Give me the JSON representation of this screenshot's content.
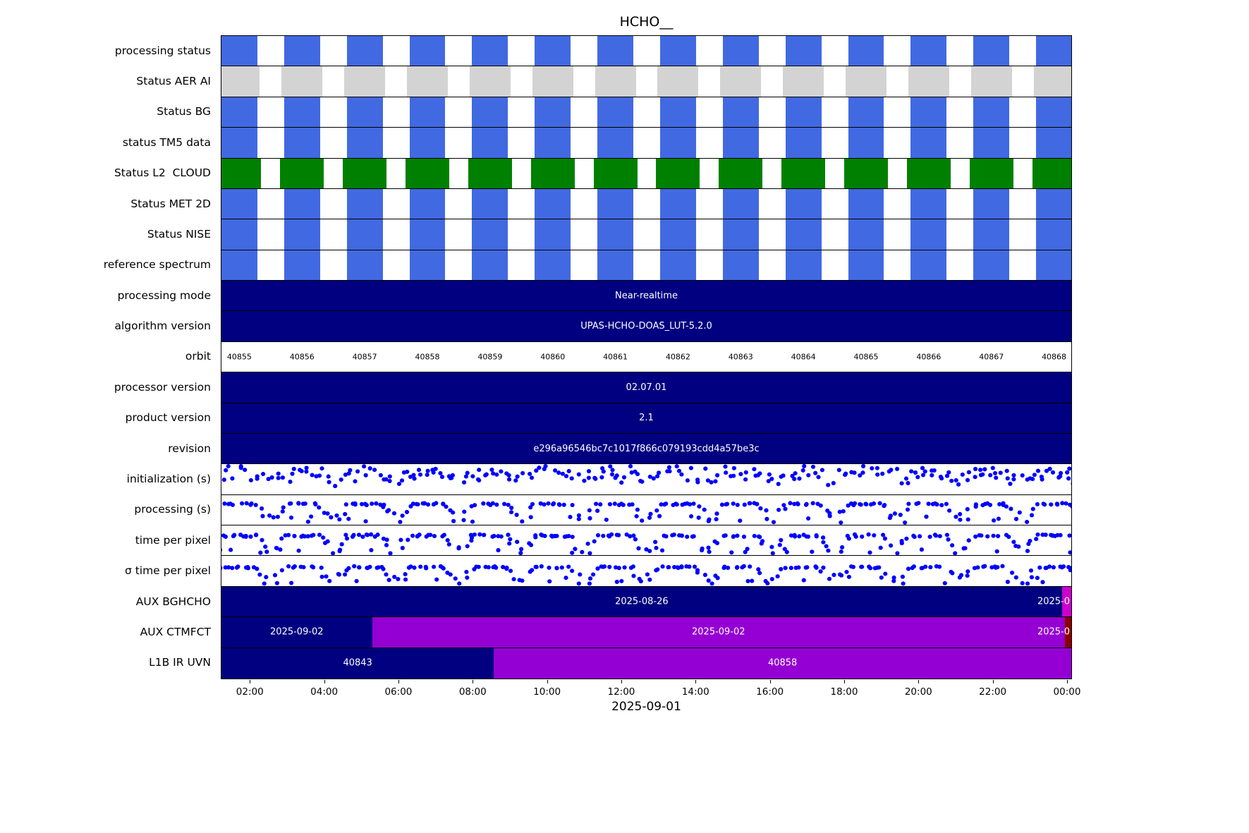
{
  "colors": {
    "blue": "#4169E1",
    "gray": "#D3D3D3",
    "green": "#008000",
    "navy": "#000080",
    "violet": "#9400D3",
    "magenta": "#CC00CC",
    "darkred": "#8B0000",
    "dot": "#0000FF",
    "axis": "#000000",
    "text_on_dark": "#FFFFFF"
  },
  "chart_data": {
    "type": "timeline-status",
    "title": "HCHO__",
    "x_axis": {
      "label": "2025-09-01",
      "ticks": [
        "02:00",
        "04:00",
        "06:00",
        "08:00",
        "10:00",
        "12:00",
        "14:00",
        "16:00",
        "18:00",
        "20:00",
        "22:00",
        "00:00"
      ],
      "start_min": 73,
      "span_min": 1375
    },
    "orbit_geometry": {
      "first_center": 0.0211,
      "spacing": 0.07374,
      "block_half_spread": 0.45
    },
    "orbits": [
      "40855",
      "40856",
      "40857",
      "40858",
      "40859",
      "40860",
      "40861",
      "40862",
      "40863",
      "40864",
      "40865",
      "40866",
      "40867",
      "40868"
    ],
    "rows": [
      {
        "label": "processing status",
        "type": "blocks",
        "color": "blue",
        "block_w": 0.0423
      },
      {
        "label": "Status AER AI",
        "type": "blocks",
        "color": "gray",
        "block_w": 0.0481
      },
      {
        "label": "Status BG",
        "type": "blocks",
        "color": "blue",
        "block_w": 0.0423
      },
      {
        "label": "status TM5 data",
        "type": "blocks",
        "color": "blue",
        "block_w": 0.0423
      },
      {
        "label": "Status L2  CLOUD",
        "type": "blocks",
        "color": "green",
        "block_w": 0.0514
      },
      {
        "label": "Status MET 2D",
        "type": "blocks",
        "color": "blue",
        "block_w": 0.0423
      },
      {
        "label": "Status NISE",
        "type": "blocks",
        "color": "blue",
        "block_w": 0.0423
      },
      {
        "label": "reference spectrum",
        "type": "blocks",
        "color": "blue",
        "block_w": 0.0423
      },
      {
        "label": "processing mode",
        "type": "bar",
        "color": "navy",
        "text": "Near-realtime"
      },
      {
        "label": "algorithm version",
        "type": "bar",
        "color": "navy",
        "text": "UPAS-HCHO-DOAS_LUT-5.2.0"
      },
      {
        "label": "orbit",
        "type": "orbit_labels"
      },
      {
        "label": "processor version",
        "type": "bar",
        "color": "navy",
        "text": "02.07.01"
      },
      {
        "label": "product version",
        "type": "bar",
        "color": "navy",
        "text": "2.1"
      },
      {
        "label": "revision",
        "type": "bar",
        "color": "navy",
        "text": "e296a96546bc7c1017f866c079193cdd4a57be3c"
      },
      {
        "label": "initialization (s)",
        "type": "scatter",
        "seed": 101,
        "pattern": {
          "kind": "noisy",
          "flat": 0.52,
          "noise": 0.45,
          "outlier_p": 0.14
        }
      },
      {
        "label": "processing (s)",
        "type": "scatter",
        "seed": 202,
        "pattern": {
          "kind": "arch",
          "flat": 0.3,
          "noise": 0.07,
          "outlier_p": 0.1
        }
      },
      {
        "label": "time per pixel",
        "type": "scatter",
        "seed": 303,
        "pattern": {
          "kind": "arch",
          "flat": 0.34,
          "noise": 0.08,
          "outlier_p": 0.12
        }
      },
      {
        "label": "σ time per pixel",
        "type": "scatter",
        "seed": 404,
        "pattern": {
          "kind": "arch",
          "flat": 0.38,
          "noise": 0.07,
          "outlier_p": 0.1
        }
      },
      {
        "label": "AUX BGHCHO",
        "type": "segments",
        "segments": [
          {
            "from": 0,
            "to": 0.989,
            "color": "navy",
            "text": "2025-08-26"
          },
          {
            "from": 0.989,
            "to": 1,
            "color": "magenta",
            "text": "2025-0",
            "anchor": "right"
          }
        ]
      },
      {
        "label": "AUX CTMFCT",
        "type": "segments",
        "segments": [
          {
            "from": 0,
            "to": 0.1773,
            "color": "navy",
            "text": "2025-09-02"
          },
          {
            "from": 0.1773,
            "to": 0.9925,
            "color": "violet",
            "text": "2025-09-02"
          },
          {
            "from": 0.9925,
            "to": 1,
            "color": "darkred",
            "text": "2025-0",
            "anchor": "right"
          }
        ]
      },
      {
        "label": "L1B IR UVN",
        "type": "segments",
        "segments": [
          {
            "from": 0,
            "to": 0.3206,
            "color": "navy",
            "text": "40843"
          },
          {
            "from": 0.3206,
            "to": 1,
            "color": "violet",
            "text": "40858"
          }
        ]
      }
    ]
  }
}
